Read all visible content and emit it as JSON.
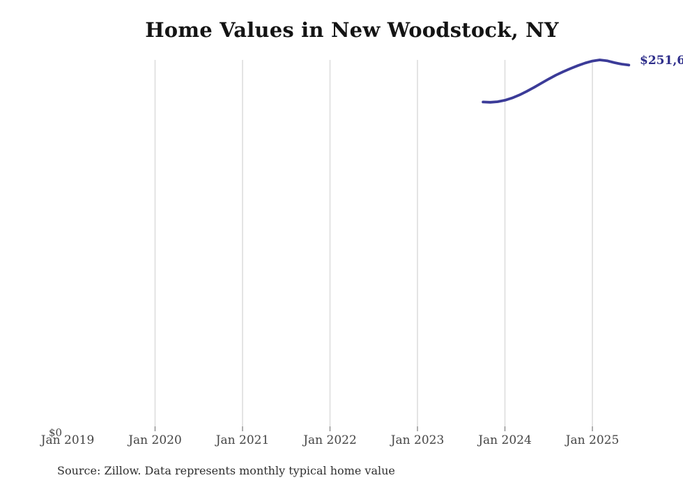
{
  "title": "Home Values in New Woodstock, NY",
  "y_zero_label": "$0",
  "end_value_label": "$251,6",
  "source_note": "Source: Zillow. Data represents monthly typical home value",
  "colors": {
    "line": "#3b3b98",
    "end_label": "#2d2d8a",
    "gridline": "#d9d9d9",
    "tick": "#8c8c8c",
    "axis_label": "#454545",
    "title": "#141414",
    "source": "#2f2f2f"
  },
  "chart_data": {
    "type": "line",
    "title": "Home Values in New Woodstock, NY",
    "x": [
      "Oct 2023",
      "Nov 2023",
      "Dec 2023",
      "Jan 2024",
      "Feb 2024",
      "Mar 2024",
      "Apr 2024",
      "May 2024",
      "Jun 2024",
      "Jul 2024",
      "Aug 2024",
      "Sep 2024",
      "Oct 2024",
      "Nov 2024",
      "Dec 2024",
      "Jan 2025",
      "Feb 2025",
      "Mar 2025",
      "Apr 2025",
      "May 2025",
      "Jun 2025"
    ],
    "values": [
      225900,
      225700,
      226100,
      227100,
      228700,
      230800,
      233300,
      236100,
      239000,
      241900,
      244600,
      247000,
      249200,
      251200,
      253000,
      254400,
      255200,
      254600,
      253300,
      252300,
      251600
    ],
    "x_ticks": [
      {
        "label": "Jan 2019",
        "gridline": false
      },
      {
        "label": "Jan 2020",
        "gridline": true
      },
      {
        "label": "Jan 2021",
        "gridline": true
      },
      {
        "label": "Jan 2022",
        "gridline": true
      },
      {
        "label": "Jan 2023",
        "gridline": true
      },
      {
        "label": "Jan 2024",
        "gridline": true
      },
      {
        "label": "Jan 2025",
        "gridline": true
      }
    ],
    "ylabel": "",
    "xlabel": "",
    "ylim": [
      0,
      255200
    ],
    "grid": "vertical-only",
    "legend": "none",
    "annotations": [
      "$0 at axis baseline",
      "$251,6 label at line end (clipped by right edge)"
    ]
  }
}
